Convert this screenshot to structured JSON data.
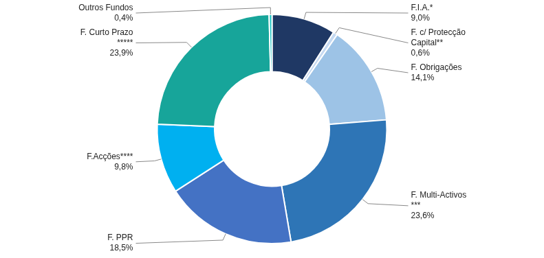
{
  "chart_data": {
    "type": "doughnut",
    "categories": [
      "F.I.A.*",
      "F. c/ Protecção\nCapital**",
      "F. Obrigações",
      "F. Multi-Activos\n***",
      "F. PPR",
      "F.Acções****",
      "F. Curto Prazo\n*****",
      "Outros Fundos"
    ],
    "values": [
      9.0,
      0.6,
      14.1,
      23.6,
      18.5,
      9.8,
      23.9,
      0.4
    ],
    "value_labels": [
      "9,0%",
      "0,6%",
      "14,1%",
      "23,6%",
      "18,5%",
      "9,8%",
      "23,9%",
      "0,4%"
    ],
    "colors": [
      "#1f3864",
      "#c5d9f1",
      "#9dc3e6",
      "#2e75b6",
      "#4472c4",
      "#00b0f0",
      "#17a59a",
      "#17c4c4"
    ],
    "data_labels": true
  }
}
